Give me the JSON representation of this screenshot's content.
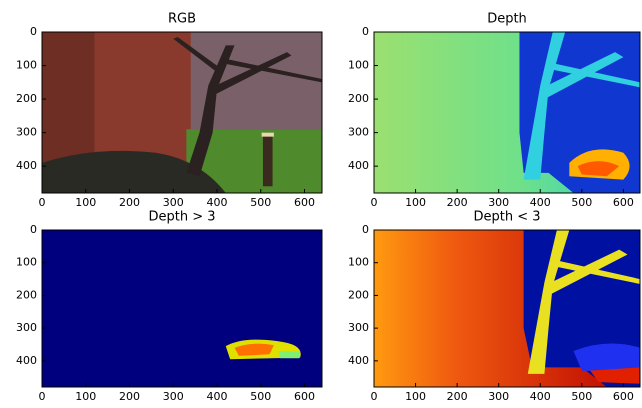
{
  "chart_data": [
    {
      "type": "image",
      "title": "RGB",
      "xlim": [
        0,
        640
      ],
      "ylim": [
        480,
        0
      ],
      "xticks": [
        0,
        100,
        200,
        300,
        400,
        500,
        600
      ],
      "yticks": [
        0,
        100,
        200,
        300,
        400
      ]
    },
    {
      "type": "image",
      "title": "Depth",
      "xlim": [
        0,
        640
      ],
      "ylim": [
        480,
        0
      ],
      "xticks": [
        0,
        100,
        200,
        300,
        400,
        500,
        600
      ],
      "yticks": [
        0,
        100,
        200,
        300,
        400
      ]
    },
    {
      "type": "image",
      "title": "Depth > 3",
      "xlim": [
        0,
        640
      ],
      "ylim": [
        480,
        0
      ],
      "xticks": [
        0,
        100,
        200,
        300,
        400,
        500,
        600
      ],
      "yticks": [
        0,
        100,
        200,
        300,
        400
      ]
    },
    {
      "type": "image",
      "title": "Depth < 3",
      "xlim": [
        0,
        640
      ],
      "ylim": [
        480,
        0
      ],
      "xticks": [
        0,
        100,
        200,
        300,
        400,
        500,
        600
      ],
      "yticks": [
        0,
        100,
        200,
        300,
        400
      ]
    }
  ]
}
